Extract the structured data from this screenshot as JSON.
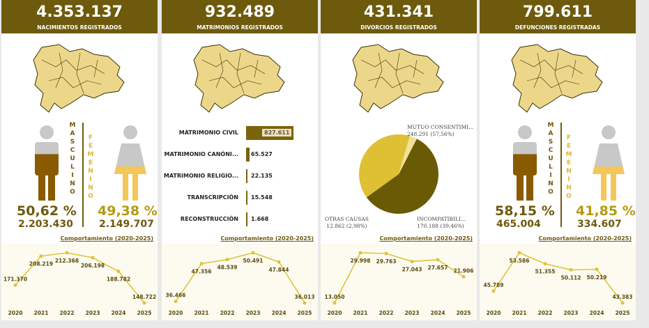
{
  "colors": {
    "header": "#6e5a0c",
    "male": "#8a5a00",
    "female": "#f5c658",
    "line": "#dcc43a",
    "map": "#ecd68a"
  },
  "panels": [
    {
      "total": "4.353.137",
      "label": "NACIMIENTOS REGISTRADOS",
      "chart_title": "Comportamiento (2020-2025)",
      "gender": {
        "male_label": "MASCULINO",
        "female_label": "FEMENINO",
        "male_pct": "50,62 %",
        "male_count": "2.203.430",
        "female_pct": "49,38 %",
        "female_count": "2.149.707",
        "male_fill": 0.5062,
        "female_fill": 0.4938
      }
    },
    {
      "total": "932.489",
      "label": "MATRIMONIOS REGISTRADOS",
      "chart_title": "Comportamiento (2020-2025)",
      "bars": [
        {
          "label": "MATRIMONIO CIVIL",
          "value": 827611,
          "display": "827.611"
        },
        {
          "label": "MATRIMONIO CANÓNI...",
          "value": 65527,
          "display": "65.527"
        },
        {
          "label": "MATRIMONIO RELIGIO...",
          "value": 22135,
          "display": "22.135"
        },
        {
          "label": "TRANSCRIPCIÓN",
          "value": 15548,
          "display": "15.548"
        },
        {
          "label": "RECONSTRUCCIÓN",
          "value": 1668,
          "display": "1.668"
        }
      ]
    },
    {
      "total": "431.341",
      "label": "DIVORCIOS REGISTRADOS",
      "chart_title": "Comportamiento (2020-2025)",
      "pie": [
        {
          "name": "MUTUO CONSENTIMI...",
          "detail": "248.291 (57,56%)",
          "value": 248291,
          "color": "#6b5a05"
        },
        {
          "name": "INCOMPATIBILI...",
          "detail": "170.188 (39,46%)",
          "value": 170188,
          "color": "#dfc035"
        },
        {
          "name": "OTRAS CAUSAS",
          "detail": "12.862 (2,98%)",
          "value": 12862,
          "color": "#efe09a"
        }
      ]
    },
    {
      "total": "799.611",
      "label": "DEFUNCIONES REGISTRADAS",
      "chart_title": "Comportamiento (2020-2025)",
      "gender": {
        "male_label": "MASCULINO",
        "female_label": "FEMENINO",
        "male_pct": "58,15 %",
        "male_count": "465.004",
        "female_pct": "41,85 %",
        "female_count": "334.607",
        "male_fill": 0.5815,
        "female_fill": 0.4185
      }
    }
  ],
  "chart_data": [
    {
      "type": "line",
      "categories": [
        "2020",
        "2021",
        "2022",
        "2023",
        "2024",
        "2025"
      ],
      "values": [
        171370,
        208219,
        212368,
        206198,
        188782,
        148722
      ],
      "labels": [
        "171.370",
        "208.219",
        "212.368",
        "206.198",
        "188.782",
        "148.722"
      ]
    },
    {
      "type": "line",
      "categories": [
        "2020",
        "2021",
        "2022",
        "2023",
        "2024",
        "2025"
      ],
      "values": [
        36466,
        47356,
        48539,
        50491,
        47844,
        36013
      ],
      "labels": [
        "36.466",
        "47.356",
        "48.539",
        "50.491",
        "47.844",
        "36.013"
      ]
    },
    {
      "type": "line",
      "categories": [
        "2020",
        "2021",
        "2022",
        "2023",
        "2024",
        "2025"
      ],
      "values": [
        13050,
        29998,
        29763,
        27043,
        27657,
        21906
      ],
      "labels": [
        "13.050",
        "29.998",
        "29.763",
        "27.043",
        "27.657",
        "21.906"
      ]
    },
    {
      "type": "line",
      "categories": [
        "2020",
        "2021",
        "2022",
        "2023",
        "2024",
        "2025"
      ],
      "values": [
        45789,
        53586,
        51355,
        50112,
        50219,
        43383
      ],
      "labels": [
        "45.789",
        "53.586",
        "51.355",
        "50.112",
        "50.219",
        "43.383"
      ]
    }
  ]
}
